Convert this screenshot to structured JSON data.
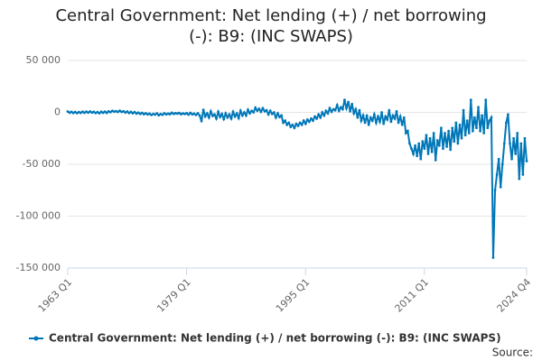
{
  "chart_data": {
    "type": "line",
    "title": "Central Government: Net lending (+) / net borrowing (-): B9: (INC SWAPS)",
    "source": "Source:",
    "categories": [
      "1963 Q1",
      null,
      null,
      null,
      null,
      null,
      null,
      null,
      null,
      null,
      null,
      null,
      null,
      null,
      null,
      null,
      null,
      null,
      null,
      null,
      null,
      null,
      null,
      null,
      null,
      null,
      null,
      null,
      null,
      null,
      null,
      null,
      null,
      null,
      null,
      null,
      null,
      null,
      null,
      null,
      null,
      null,
      null,
      null,
      null,
      null,
      null,
      null,
      null,
      null,
      null,
      null,
      null,
      null,
      null,
      null,
      null,
      null,
      null,
      null,
      null,
      null,
      null,
      null,
      "1979 Q1",
      null,
      null,
      null,
      null,
      null,
      null,
      null,
      null,
      null,
      null,
      null,
      null,
      null,
      null,
      null,
      null,
      null,
      null,
      null,
      null,
      null,
      null,
      null,
      null,
      null,
      null,
      null,
      null,
      null,
      null,
      null,
      null,
      null,
      null,
      null,
      null,
      null,
      null,
      null,
      null,
      null,
      null,
      null,
      null,
      null,
      null,
      null,
      null,
      null,
      null,
      null,
      null,
      null,
      null,
      null,
      null,
      null,
      null,
      null,
      null,
      null,
      null,
      null,
      "1995 Q1",
      null,
      null,
      null,
      null,
      null,
      null,
      null,
      null,
      null,
      null,
      null,
      null,
      null,
      null,
      null,
      null,
      null,
      null,
      null,
      null,
      null,
      null,
      null,
      null,
      null,
      null,
      null,
      null,
      null,
      null,
      null,
      null,
      null,
      null,
      null,
      null,
      null,
      null,
      null,
      null,
      null,
      null,
      null,
      null,
      null,
      null,
      null,
      null,
      null,
      null,
      null,
      null,
      null,
      null,
      null,
      null,
      null,
      null,
      null,
      null,
      null,
      null,
      null,
      "2011 Q1",
      null,
      null,
      null,
      null,
      null,
      null,
      null,
      null,
      null,
      null,
      null,
      null,
      null,
      null,
      null,
      null,
      null,
      null,
      null,
      null,
      null,
      null,
      null,
      null,
      null,
      null,
      null,
      null,
      null,
      null,
      null,
      null,
      null,
      null,
      null,
      null,
      null,
      null,
      null,
      null,
      null,
      null,
      null,
      null,
      null,
      null,
      null,
      null,
      null,
      null,
      null,
      null,
      null,
      null,
      "2024 Q4"
    ],
    "series": [
      {
        "name": "Central Government: Net lending (+) / net borrowing (-): B9: (INC SWAPS)",
        "color": "#0077b8",
        "values": [
          800,
          -300,
          500,
          -600,
          400,
          -800,
          300,
          -500,
          600,
          -400,
          700,
          -300,
          900,
          -200,
          500,
          -700,
          300,
          -900,
          600,
          -400,
          700,
          -500,
          1000,
          200,
          1500,
          600,
          1200,
          300,
          1600,
          400,
          1100,
          -200,
          800,
          -600,
          500,
          -900,
          300,
          -1200,
          -200,
          -1500,
          -500,
          -1800,
          -900,
          -2000,
          -1200,
          -2500,
          -1500,
          -2200,
          -1000,
          -2800,
          -1600,
          -2400,
          -900,
          -2000,
          -1200,
          -1800,
          -300,
          -1500,
          -800,
          -1200,
          -600,
          -1800,
          -1000,
          -1600,
          -800,
          -2200,
          -500,
          -2000,
          -1200,
          -2500,
          -900,
          -3000,
          -8500,
          2500,
          -4000,
          -1000,
          -5000,
          1000,
          -3500,
          -2000,
          -6000,
          500,
          -4500,
          -1500,
          -6500,
          -1000,
          -5000,
          -2000,
          -6000,
          500,
          -4000,
          -1000,
          -5500,
          1500,
          -3000,
          0,
          -3000,
          2500,
          -1000,
          1500,
          0,
          4500,
          1500,
          3500,
          500,
          4000,
          1000,
          2000,
          -2000,
          1500,
          -1500,
          0,
          -5000,
          -1000,
          -4500,
          -3000,
          -10000,
          -8000,
          -12000,
          -10000,
          -14000,
          -12000,
          -15000,
          -11000,
          -13000,
          -10000,
          -12000,
          -8000,
          -11000,
          -7000,
          -9000,
          -6000,
          -8000,
          -4000,
          -6000,
          -2000,
          -5000,
          0,
          -3000,
          1500,
          -1000,
          4000,
          500,
          3000,
          2000,
          7000,
          1500,
          5000,
          3000,
          12000,
          4000,
          10000,
          1000,
          8000,
          -1000,
          3000,
          -5000,
          2000,
          -8000,
          -3000,
          -10000,
          -3000,
          -12000,
          -5000,
          -8000,
          -2000,
          -10000,
          -4000,
          -9000,
          0,
          -11000,
          -4000,
          -7000,
          2000,
          -9000,
          -3000,
          -6000,
          1000,
          -10000,
          -4000,
          -12000,
          -5000,
          -20000,
          -18000,
          -30000,
          -35000,
          -40000,
          -32000,
          -42000,
          -30000,
          -45000,
          -28000,
          -35000,
          -22000,
          -40000,
          -25000,
          -38000,
          -20000,
          -46000,
          -27000,
          -32000,
          -15000,
          -35000,
          -20000,
          -33000,
          -18000,
          -36000,
          -15000,
          -28000,
          -10000,
          -30000,
          -12000,
          -25000,
          2000,
          -22000,
          -8000,
          -20000,
          12000,
          -18000,
          -5000,
          -15000,
          5000,
          -18000,
          -3000,
          -20000,
          12000,
          -15000,
          -8000,
          -5000,
          -140000,
          -75000,
          -60000,
          -45000,
          -72000,
          -50000,
          -30000,
          -10000,
          -2000,
          -30000,
          -45000,
          -25000,
          -40000,
          -20000,
          -64000,
          -30000,
          -60000,
          -25000,
          -47000
        ]
      }
    ],
    "ylim": [
      -150000,
      50000
    ],
    "yticks": [
      {
        "value": -150000,
        "label": "-150 000"
      },
      {
        "value": -100000,
        "label": "-100 000"
      },
      {
        "value": -50000,
        "label": "-50 000"
      },
      0,
      {
        "value": 50000,
        "label": "50 000"
      }
    ],
    "grid": true
  }
}
